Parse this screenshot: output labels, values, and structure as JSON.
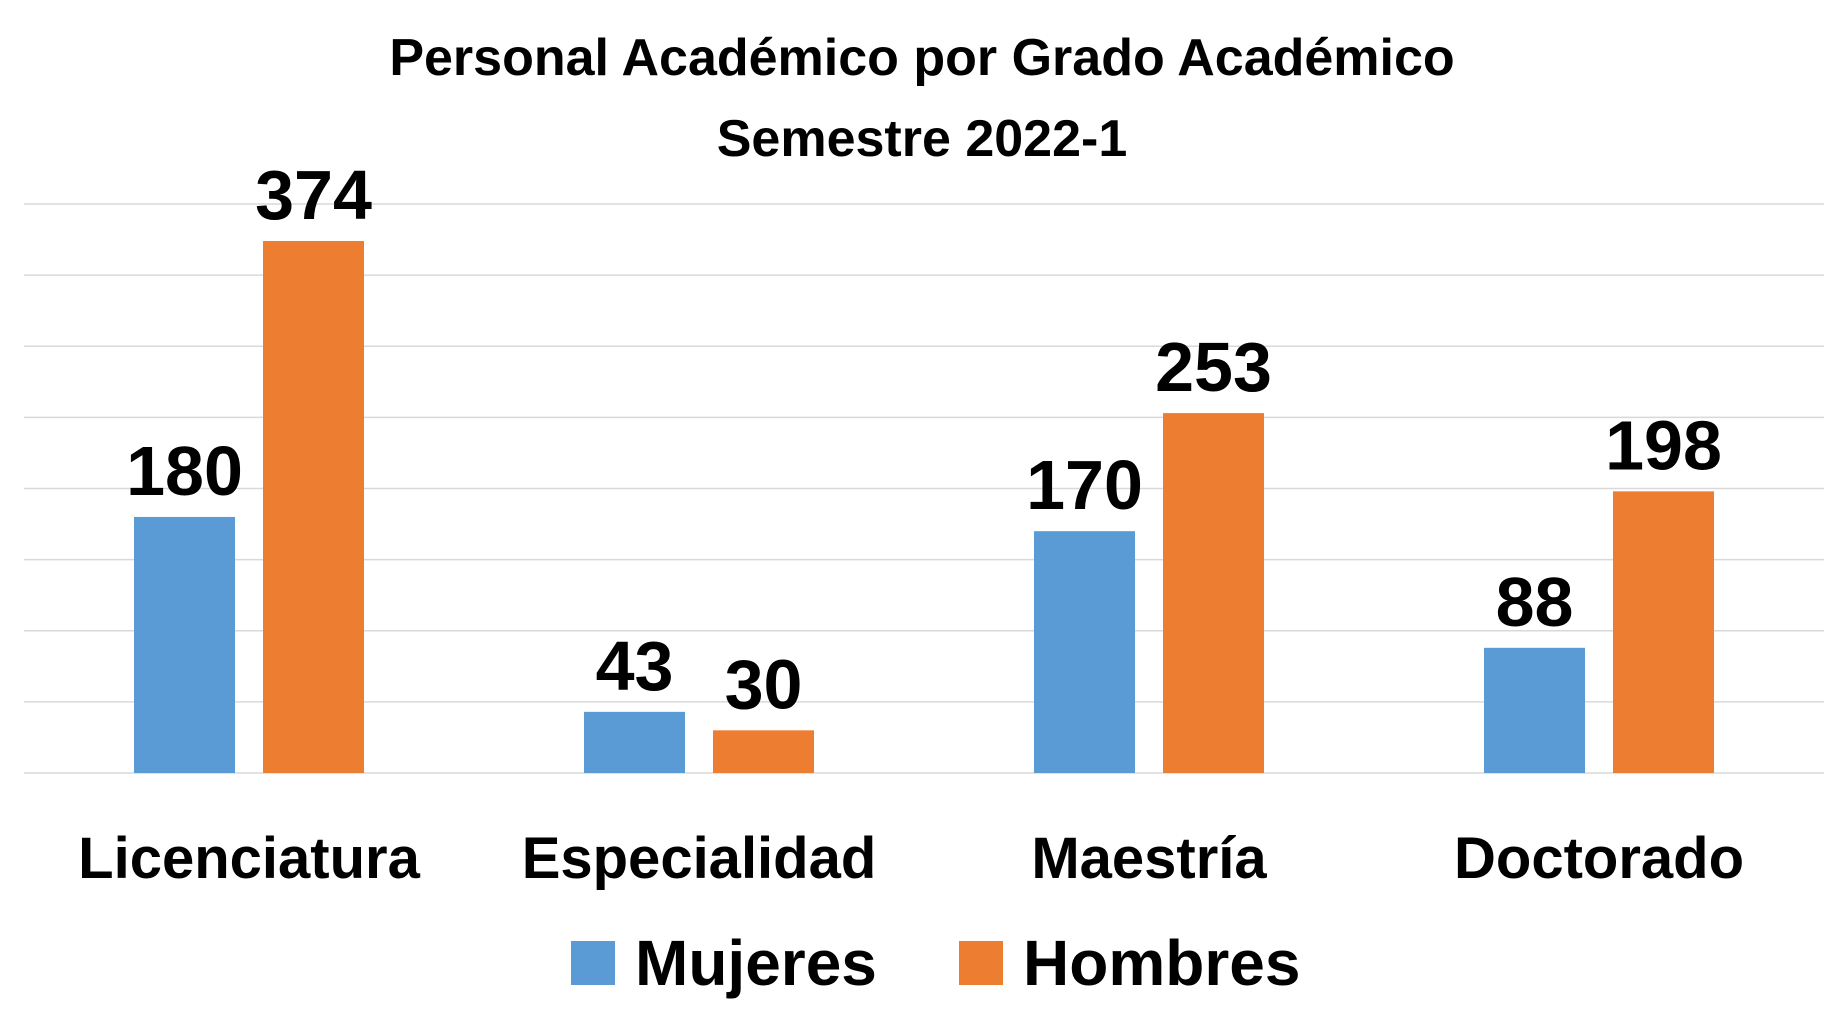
{
  "chart_data": {
    "type": "bar",
    "title": "Personal Académico por Grado Académico",
    "subtitle": "Semestre 2022-1",
    "categories": [
      "Licenciatura",
      "Especialidad",
      "Maestría",
      "Doctorado"
    ],
    "series": [
      {
        "name": "Mujeres",
        "values": [
          180,
          43,
          170,
          88
        ],
        "color": "#5B9BD5"
      },
      {
        "name": "Hombres",
        "values": [
          374,
          30,
          253,
          198
        ],
        "color": "#ED7D31"
      }
    ],
    "ylim": [
      0,
      400
    ],
    "grid": true,
    "gridline_color": "#D9D9D9",
    "legend": "bottom",
    "data_labels": true
  }
}
